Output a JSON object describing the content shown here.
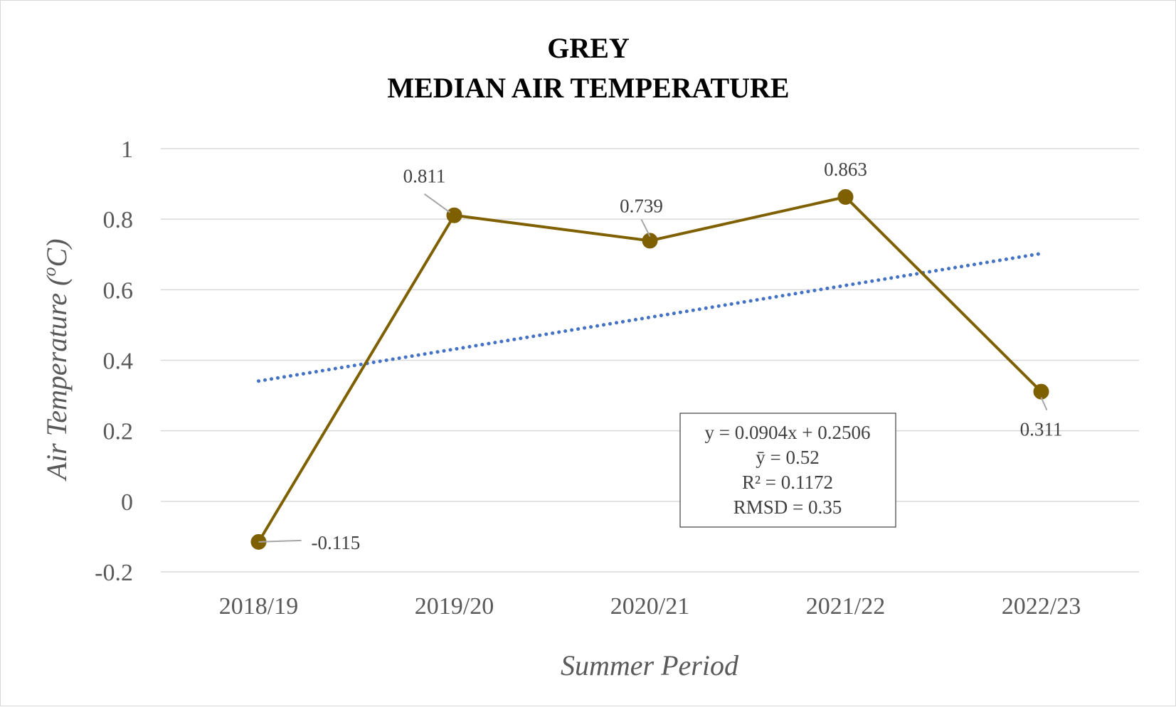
{
  "chart_data": {
    "type": "line",
    "title_line1": "GREY",
    "title_line2": "MEDIAN AIR TEMPERATURE",
    "xlabel": "Summer Period",
    "ylabel_prefix": "Air Temperature (",
    "ylabel_degree": "o",
    "ylabel_unit": "C)",
    "categories": [
      "2018/19",
      "2019/20",
      "2020/21",
      "2021/22",
      "2022/23"
    ],
    "series": [
      {
        "values": [
          -0.115,
          0.811,
          0.739,
          0.863,
          0.311
        ],
        "data_labels": [
          "-0.115",
          "0.811",
          "0.739",
          "0.863",
          "0.311"
        ],
        "color": "#7f6000"
      }
    ],
    "trendline": {
      "type": "linear",
      "slope": 0.0904,
      "intercept": 0.2506,
      "style": "dotted",
      "color": "#4472c4"
    },
    "ylim": [
      -0.2,
      1
    ],
    "yticks": [
      -0.2,
      0,
      0.2,
      0.4,
      0.6,
      0.8,
      1
    ],
    "ytick_labels": [
      "-0.2",
      "0",
      "0.2",
      "0.4",
      "0.6",
      "0.8",
      "1"
    ],
    "grid": true,
    "legend": "none",
    "annotation": {
      "lines": [
        "y = 0.0904x + 0.2506",
        "ȳ = 0.52",
        "R² = 0.1172",
        "RMSD = 0.35"
      ]
    },
    "colors": {
      "gridline": "#d9d9d9",
      "leader": "#a6a6a6"
    }
  }
}
